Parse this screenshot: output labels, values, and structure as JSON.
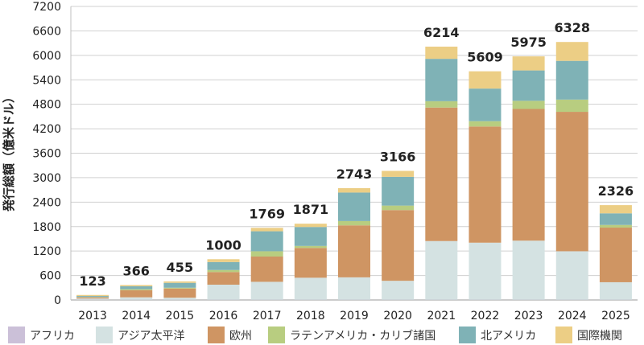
{
  "chart_data": {
    "type": "bar",
    "stacked": true,
    "ylabel": "発行総額（億米ドル）",
    "ylim": [
      0,
      7200
    ],
    "yticks": [
      0,
      600,
      1200,
      1800,
      2400,
      3000,
      3600,
      4200,
      4800,
      5400,
      6000,
      6600,
      7200
    ],
    "grid": "y",
    "legend_position": "bottom",
    "categories": [
      "2013",
      "2014",
      "2015",
      "2016",
      "2017",
      "2018",
      "2019",
      "2020",
      "2021",
      "2022",
      "2023",
      "2024",
      "2025"
    ],
    "totals": [
      123,
      366,
      455,
      1000,
      1769,
      1871,
      2743,
      3166,
      6214,
      5609,
      5975,
      6328,
      2326
    ],
    "series": [
      {
        "name": "アフリカ",
        "color": "#cbc0d8",
        "values": [
          5,
          5,
          5,
          5,
          5,
          5,
          5,
          5,
          5,
          5,
          5,
          5,
          5
        ]
      },
      {
        "name": "アジア太平洋",
        "color": "#d4e2e2",
        "values": [
          30,
          60,
          50,
          370,
          440,
          540,
          550,
          465,
          1440,
          1400,
          1450,
          1190,
          430
        ]
      },
      {
        "name": "欧州",
        "color": "#cf9563",
        "values": [
          30,
          175,
          225,
          310,
          620,
          730,
          1275,
          1735,
          3275,
          2850,
          3230,
          3420,
          1340
        ]
      },
      {
        "name": "ラテンアメリカ・カリブ諸国",
        "color": "#b8cd80",
        "values": [
          8,
          25,
          20,
          50,
          130,
          50,
          105,
          110,
          155,
          130,
          200,
          300,
          65
        ]
      },
      {
        "name": "北アメリカ",
        "color": "#7fb2b6",
        "values": [
          25,
          70,
          120,
          195,
          490,
          465,
          700,
          705,
          1040,
          800,
          745,
          950,
          285
        ]
      },
      {
        "name": "国際機関",
        "color": "#ecce85",
        "values": [
          25,
          31,
          35,
          70,
          84,
          81,
          108,
          146,
          299,
          424,
          345,
          463,
          201
        ]
      }
    ]
  }
}
